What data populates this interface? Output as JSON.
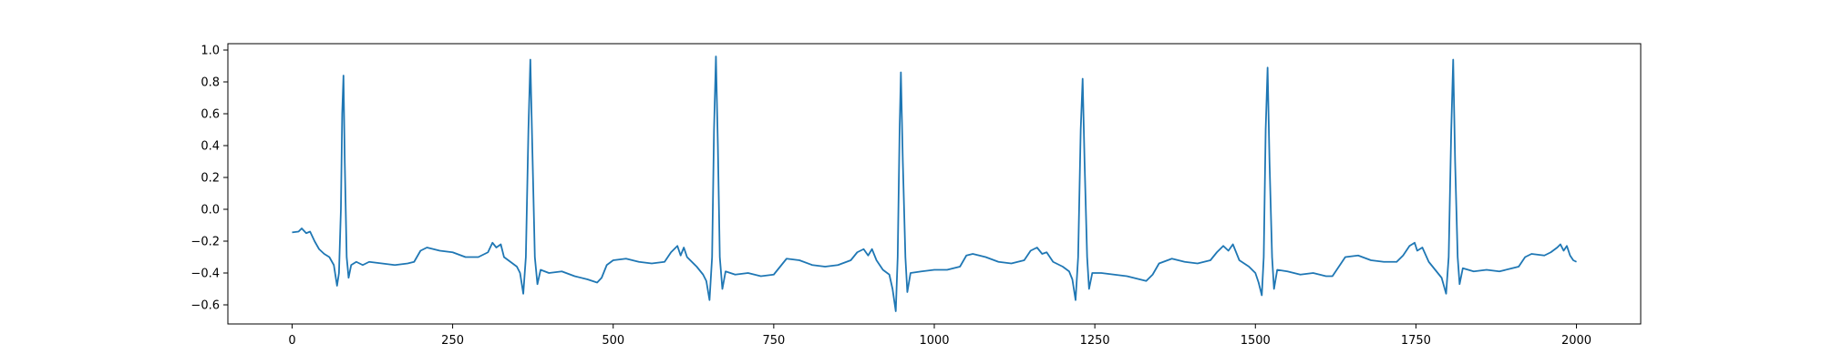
{
  "chart_data": {
    "type": "line",
    "title": "",
    "xlabel": "",
    "ylabel": "",
    "xlim": [
      -100,
      2100
    ],
    "ylim": [
      -0.72,
      1.04
    ],
    "x_ticks": [
      0,
      250,
      500,
      750,
      1000,
      1250,
      1500,
      1750,
      2000
    ],
    "y_ticks": [
      1.0,
      0.8,
      0.6,
      0.4,
      0.2,
      0.0,
      -0.2,
      -0.4,
      -0.6
    ],
    "x_tick_labels": [
      "0",
      "250",
      "500",
      "750",
      "1000",
      "1250",
      "1500",
      "1750",
      "2000"
    ],
    "y_tick_labels": [
      "1.0",
      "0.8",
      "0.6",
      "0.4",
      "0.2",
      "0.0",
      "−0.2",
      "−0.4",
      "−0.6"
    ],
    "grid": false,
    "legend": "none",
    "series": [
      {
        "color": "#1f77b4",
        "points": [
          [
            0,
            -0.145
          ],
          [
            10,
            -0.14
          ],
          [
            15,
            -0.12
          ],
          [
            22,
            -0.15
          ],
          [
            28,
            -0.14
          ],
          [
            35,
            -0.2
          ],
          [
            42,
            -0.25
          ],
          [
            50,
            -0.28
          ],
          [
            58,
            -0.3
          ],
          [
            65,
            -0.35
          ],
          [
            70,
            -0.48
          ],
          [
            73,
            -0.4
          ],
          [
            76,
            0.0
          ],
          [
            78,
            0.6
          ],
          [
            80,
            0.84
          ],
          [
            82,
            0.3
          ],
          [
            85,
            -0.3
          ],
          [
            88,
            -0.43
          ],
          [
            92,
            -0.35
          ],
          [
            100,
            -0.33
          ],
          [
            110,
            -0.35
          ],
          [
            120,
            -0.33
          ],
          [
            140,
            -0.34
          ],
          [
            160,
            -0.35
          ],
          [
            180,
            -0.34
          ],
          [
            190,
            -0.33
          ],
          [
            200,
            -0.26
          ],
          [
            210,
            -0.24
          ],
          [
            230,
            -0.26
          ],
          [
            250,
            -0.27
          ],
          [
            270,
            -0.3
          ],
          [
            290,
            -0.3
          ],
          [
            305,
            -0.27
          ],
          [
            312,
            -0.21
          ],
          [
            318,
            -0.24
          ],
          [
            325,
            -0.22
          ],
          [
            330,
            -0.3
          ],
          [
            340,
            -0.33
          ],
          [
            350,
            -0.36
          ],
          [
            355,
            -0.4
          ],
          [
            360,
            -0.53
          ],
          [
            364,
            -0.3
          ],
          [
            368,
            0.5
          ],
          [
            371,
            0.94
          ],
          [
            374,
            0.4
          ],
          [
            378,
            -0.3
          ],
          [
            382,
            -0.47
          ],
          [
            387,
            -0.38
          ],
          [
            400,
            -0.4
          ],
          [
            420,
            -0.39
          ],
          [
            440,
            -0.42
          ],
          [
            460,
            -0.44
          ],
          [
            475,
            -0.46
          ],
          [
            482,
            -0.43
          ],
          [
            490,
            -0.35
          ],
          [
            500,
            -0.32
          ],
          [
            520,
            -0.31
          ],
          [
            540,
            -0.33
          ],
          [
            560,
            -0.34
          ],
          [
            580,
            -0.33
          ],
          [
            590,
            -0.27
          ],
          [
            600,
            -0.23
          ],
          [
            605,
            -0.29
          ],
          [
            610,
            -0.24
          ],
          [
            615,
            -0.3
          ],
          [
            630,
            -0.36
          ],
          [
            640,
            -0.41
          ],
          [
            645,
            -0.45
          ],
          [
            650,
            -0.57
          ],
          [
            654,
            -0.3
          ],
          [
            657,
            0.5
          ],
          [
            660,
            0.96
          ],
          [
            663,
            0.4
          ],
          [
            666,
            -0.3
          ],
          [
            670,
            -0.5
          ],
          [
            675,
            -0.39
          ],
          [
            690,
            -0.41
          ],
          [
            710,
            -0.4
          ],
          [
            730,
            -0.42
          ],
          [
            750,
            -0.41
          ],
          [
            760,
            -0.36
          ],
          [
            770,
            -0.31
          ],
          [
            790,
            -0.32
          ],
          [
            810,
            -0.35
          ],
          [
            830,
            -0.36
          ],
          [
            850,
            -0.35
          ],
          [
            870,
            -0.32
          ],
          [
            880,
            -0.27
          ],
          [
            890,
            -0.25
          ],
          [
            897,
            -0.29
          ],
          [
            903,
            -0.25
          ],
          [
            910,
            -0.32
          ],
          [
            920,
            -0.38
          ],
          [
            930,
            -0.41
          ],
          [
            935,
            -0.5
          ],
          [
            940,
            -0.64
          ],
          [
            943,
            -0.3
          ],
          [
            946,
            0.5
          ],
          [
            948,
            0.86
          ],
          [
            951,
            0.3
          ],
          [
            955,
            -0.3
          ],
          [
            958,
            -0.52
          ],
          [
            963,
            -0.4
          ],
          [
            980,
            -0.39
          ],
          [
            1000,
            -0.38
          ],
          [
            1020,
            -0.38
          ],
          [
            1040,
            -0.36
          ],
          [
            1050,
            -0.29
          ],
          [
            1060,
            -0.28
          ],
          [
            1080,
            -0.3
          ],
          [
            1100,
            -0.33
          ],
          [
            1120,
            -0.34
          ],
          [
            1140,
            -0.32
          ],
          [
            1150,
            -0.26
          ],
          [
            1160,
            -0.24
          ],
          [
            1168,
            -0.28
          ],
          [
            1175,
            -0.27
          ],
          [
            1185,
            -0.33
          ],
          [
            1200,
            -0.36
          ],
          [
            1210,
            -0.39
          ],
          [
            1215,
            -0.44
          ],
          [
            1220,
            -0.57
          ],
          [
            1224,
            -0.3
          ],
          [
            1228,
            0.5
          ],
          [
            1231,
            0.82
          ],
          [
            1234,
            0.3
          ],
          [
            1238,
            -0.3
          ],
          [
            1241,
            -0.5
          ],
          [
            1246,
            -0.4
          ],
          [
            1260,
            -0.4
          ],
          [
            1280,
            -0.41
          ],
          [
            1300,
            -0.42
          ],
          [
            1320,
            -0.44
          ],
          [
            1330,
            -0.45
          ],
          [
            1340,
            -0.41
          ],
          [
            1350,
            -0.34
          ],
          [
            1370,
            -0.31
          ],
          [
            1390,
            -0.33
          ],
          [
            1410,
            -0.34
          ],
          [
            1430,
            -0.32
          ],
          [
            1440,
            -0.27
          ],
          [
            1450,
            -0.23
          ],
          [
            1458,
            -0.26
          ],
          [
            1465,
            -0.22
          ],
          [
            1475,
            -0.32
          ],
          [
            1490,
            -0.36
          ],
          [
            1500,
            -0.4
          ],
          [
            1505,
            -0.46
          ],
          [
            1510,
            -0.54
          ],
          [
            1513,
            -0.3
          ],
          [
            1516,
            0.5
          ],
          [
            1519,
            0.89
          ],
          [
            1522,
            0.3
          ],
          [
            1526,
            -0.3
          ],
          [
            1529,
            -0.5
          ],
          [
            1534,
            -0.38
          ],
          [
            1550,
            -0.39
          ],
          [
            1570,
            -0.41
          ],
          [
            1590,
            -0.4
          ],
          [
            1610,
            -0.42
          ],
          [
            1620,
            -0.42
          ],
          [
            1630,
            -0.36
          ],
          [
            1640,
            -0.3
          ],
          [
            1660,
            -0.29
          ],
          [
            1680,
            -0.32
          ],
          [
            1700,
            -0.33
          ],
          [
            1720,
            -0.33
          ],
          [
            1730,
            -0.29
          ],
          [
            1740,
            -0.23
          ],
          [
            1748,
            -0.21
          ],
          [
            1752,
            -0.26
          ],
          [
            1760,
            -0.24
          ],
          [
            1770,
            -0.33
          ],
          [
            1780,
            -0.38
          ],
          [
            1790,
            -0.43
          ],
          [
            1797,
            -0.53
          ],
          [
            1801,
            -0.3
          ],
          [
            1805,
            0.5
          ],
          [
            1808,
            0.94
          ],
          [
            1811,
            0.3
          ],
          [
            1815,
            -0.3
          ],
          [
            1818,
            -0.47
          ],
          [
            1823,
            -0.37
          ],
          [
            1840,
            -0.39
          ],
          [
            1860,
            -0.38
          ],
          [
            1880,
            -0.39
          ],
          [
            1900,
            -0.37
          ],
          [
            1910,
            -0.36
          ],
          [
            1920,
            -0.3
          ],
          [
            1930,
            -0.28
          ],
          [
            1950,
            -0.29
          ],
          [
            1960,
            -0.27
          ],
          [
            1970,
            -0.24
          ],
          [
            1975,
            -0.22
          ],
          [
            1980,
            -0.26
          ],
          [
            1985,
            -0.23
          ],
          [
            1990,
            -0.29
          ],
          [
            1995,
            -0.32
          ],
          [
            2000,
            -0.33
          ]
        ]
      }
    ]
  }
}
